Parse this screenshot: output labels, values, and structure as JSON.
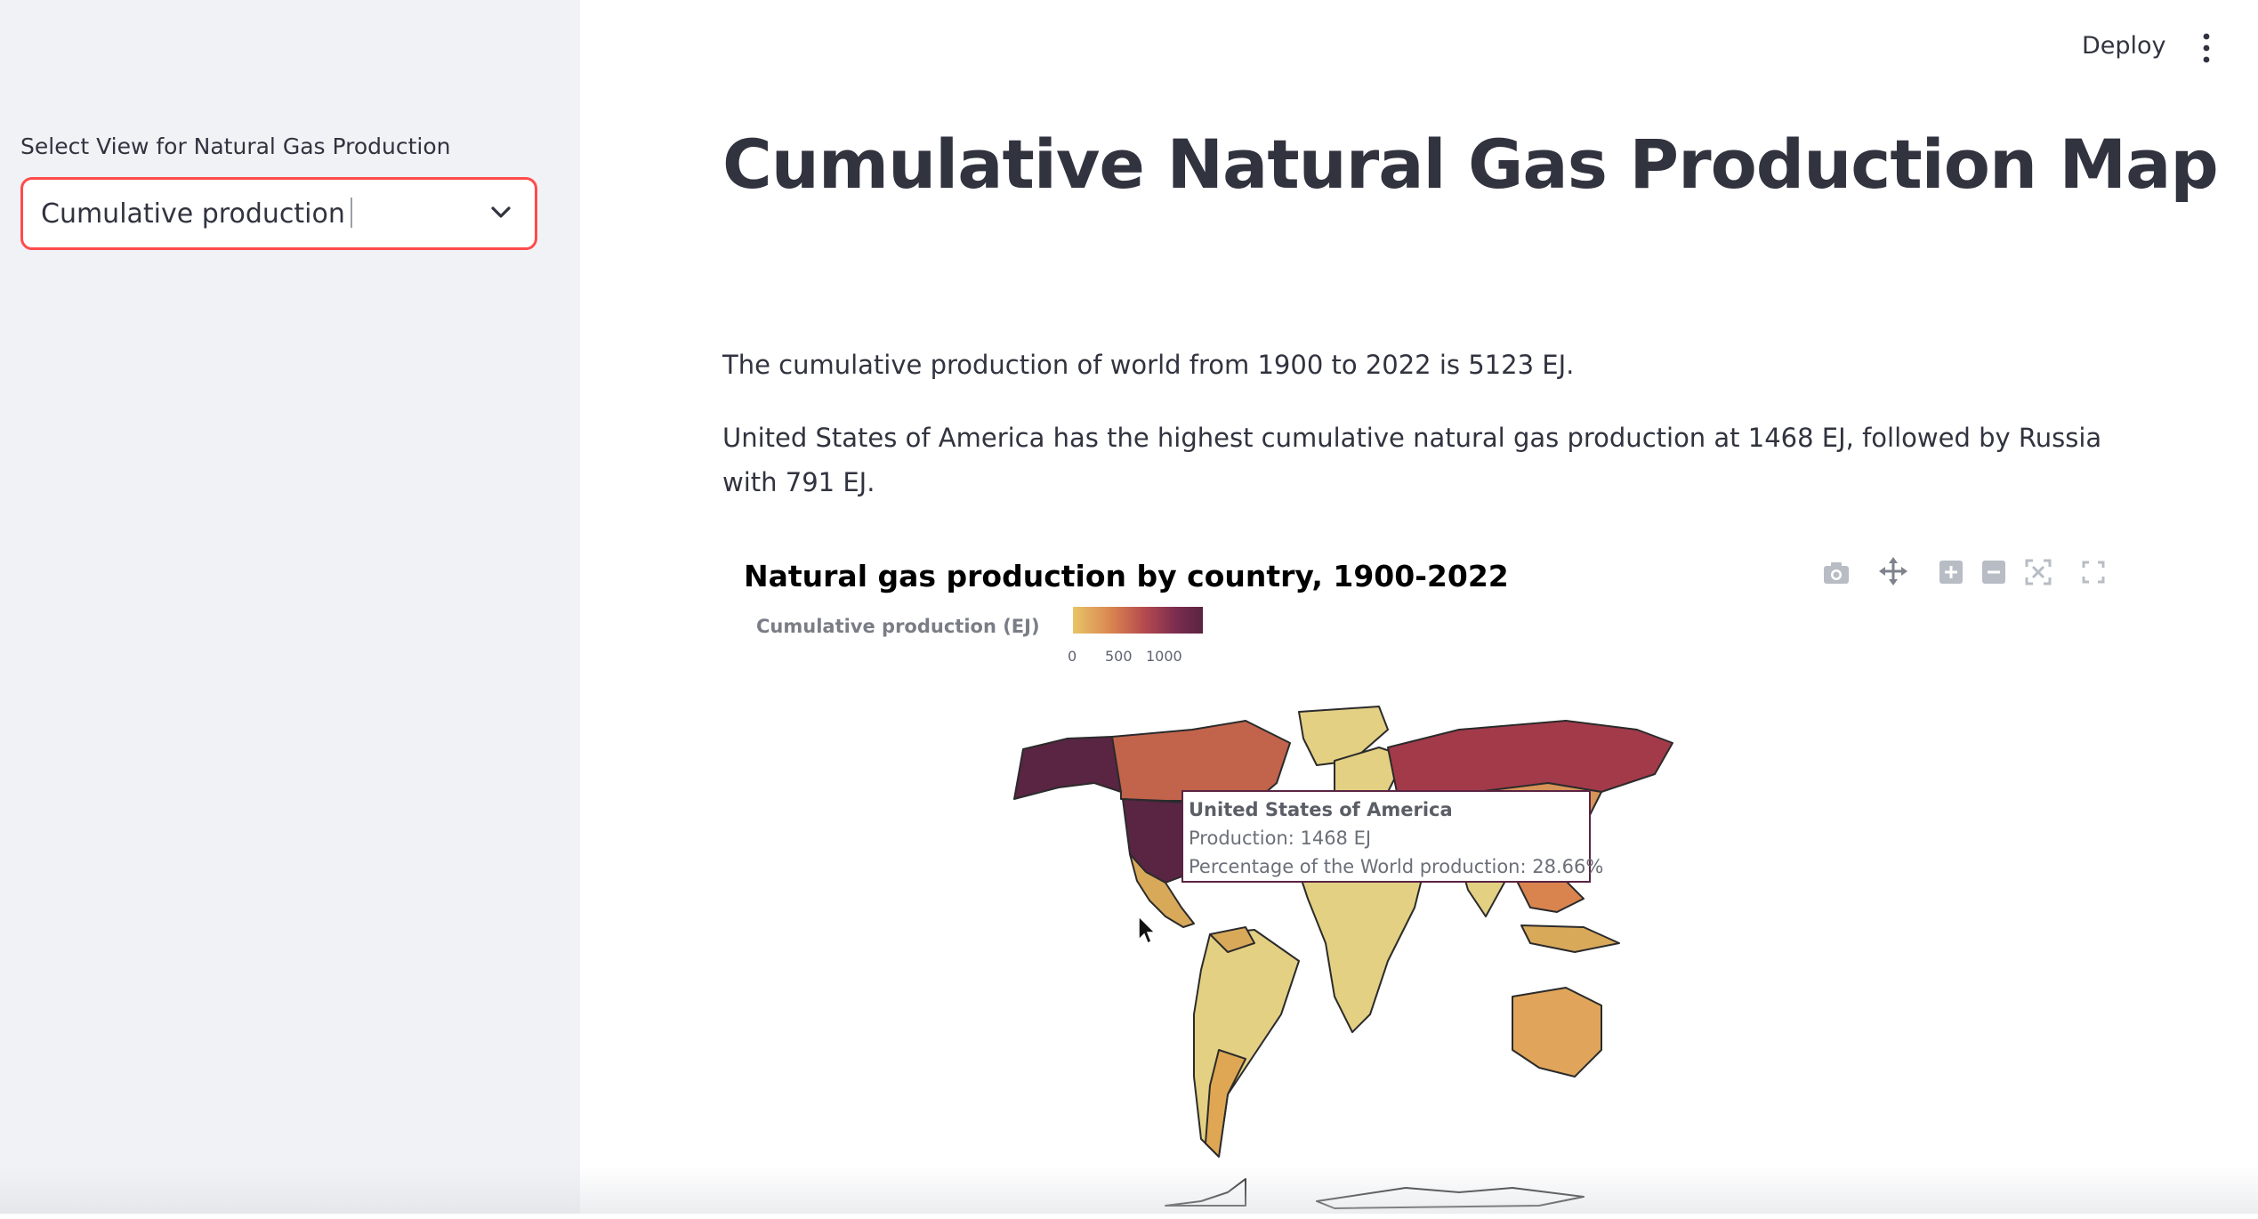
{
  "sidebar": {
    "select_label": "Select View for Natural Gas Production",
    "select_value": "Cumulative production",
    "accent_color": "#ff4b4b"
  },
  "toolbar": {
    "deploy_label": "Deploy",
    "menu_icon": "vertical-dots-icon"
  },
  "main": {
    "title": "Cumulative Natural Gas Production Map",
    "para1": "The cumulative production of world from 1900 to 2022 is 5123 EJ.",
    "para2": "United States of America has the highest cumulative natural gas production at 1468 EJ, followed by Russia with 791 EJ."
  },
  "chart": {
    "title": "Natural gas production by country, 1900-2022",
    "colorbar_title": "Cumulative production (EJ)",
    "colorbar_ticks": [
      "0",
      "500",
      "1000"
    ],
    "modebar_icons": [
      "camera-icon",
      "pan-icon",
      "zoom-in-icon",
      "zoom-out-icon",
      "autoscale-icon",
      "fullscreen-icon"
    ],
    "tooltip": {
      "country": "United States of America",
      "production": "Production: 1468 EJ",
      "percentage": "Percentage of the World production: 28.66%"
    }
  },
  "chart_data": {
    "type": "choropleth",
    "title": "Natural gas production by country, 1900-2022",
    "colorbar_label": "Cumulative production (EJ)",
    "colorbar_ticks": [
      0,
      500,
      1000
    ],
    "colorscale": [
      "#e8c468",
      "#d9844f",
      "#b54a4f",
      "#7a2c4f",
      "#5a2443"
    ],
    "values": [
      {
        "country": "United States of America",
        "production_ej": 1468,
        "percentage": 28.66
      },
      {
        "country": "Russia",
        "production_ej": 791
      }
    ],
    "world_total_ej": 5123
  }
}
